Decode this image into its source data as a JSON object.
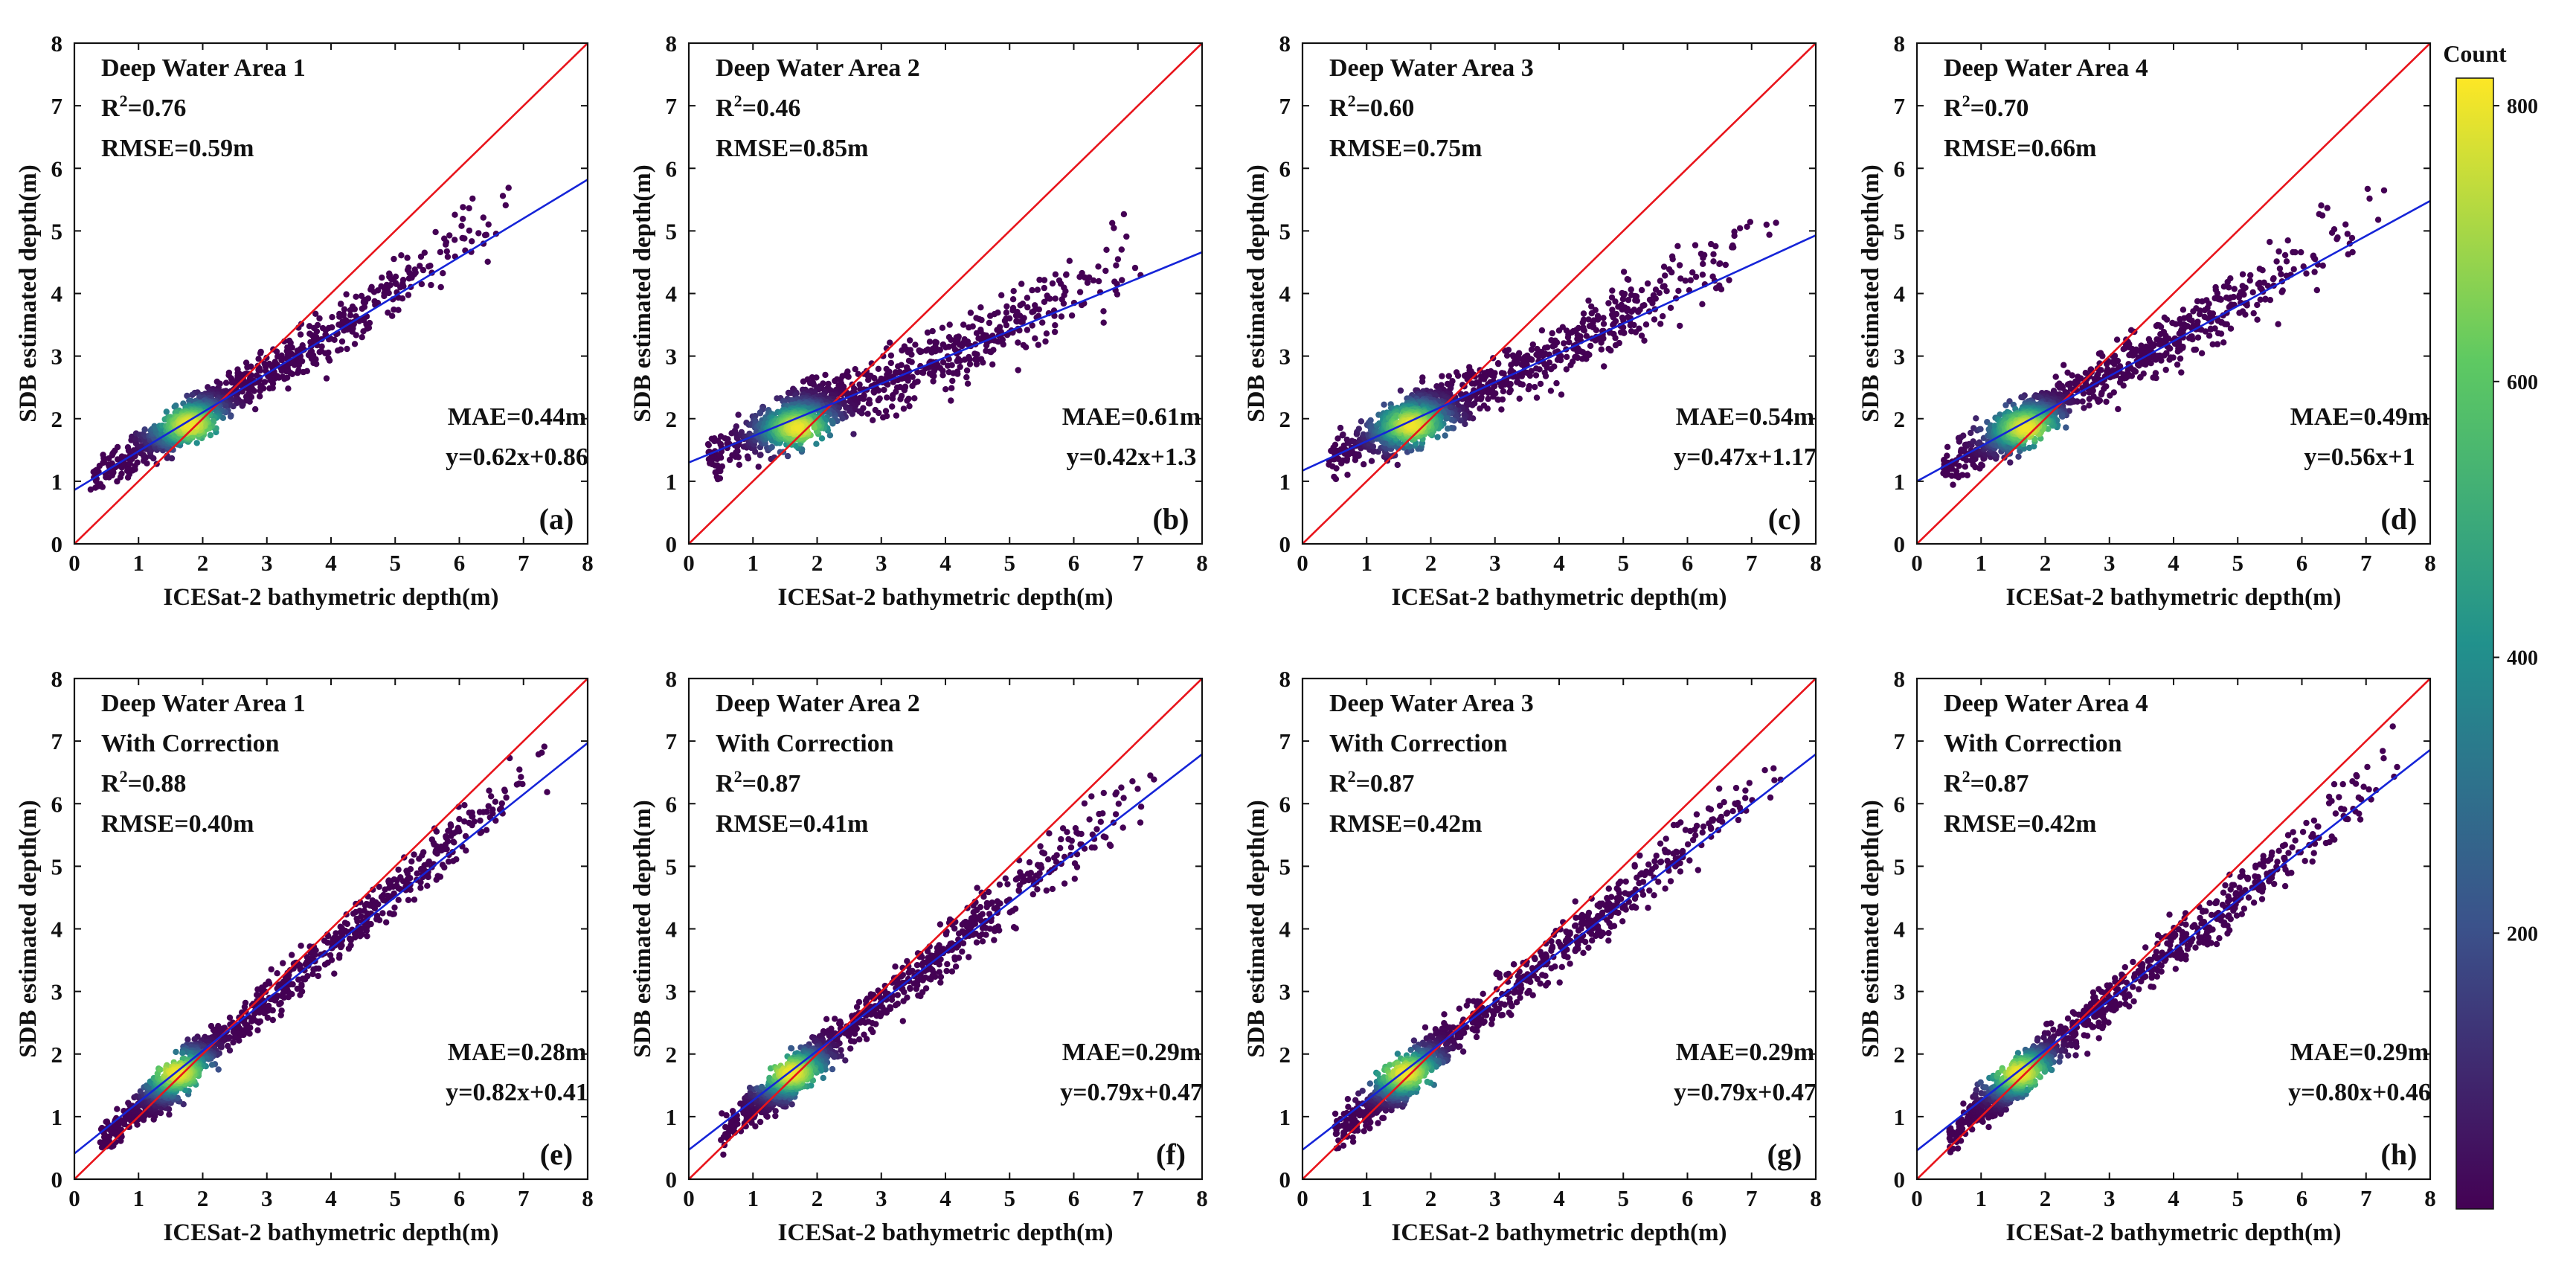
{
  "chart_data": [
    {
      "type": "scatter",
      "panel": "(a)",
      "title_lines": [
        "Deep Water Area 1"
      ],
      "r2": "0.76",
      "rmse": "RMSE=0.59m",
      "mae": "MAE=0.44m",
      "fit_equation": "y=0.62x+0.86",
      "fit": {
        "slope": 0.62,
        "intercept": 0.86
      },
      "xlabel": "ICESat-2 bathymetric depth(m)",
      "ylabel": "SDB estimated depth(m)",
      "xlim": [
        0,
        8
      ],
      "ylim": [
        0,
        8
      ],
      "cloud": {
        "lo": 0.25,
        "hi": 6.9,
        "sigma": 0.33,
        "dense_x": 1.8,
        "dense_y": 1.9
      }
    },
    {
      "type": "scatter",
      "panel": "(b)",
      "title_lines": [
        "Deep Water Area 2"
      ],
      "r2": "0.46",
      "rmse": "RMSE=0.85m",
      "mae": "MAE=0.61m",
      "fit_equation": "y=0.42x+1.3",
      "fit": {
        "slope": 0.42,
        "intercept": 1.3
      },
      "xlabel": "ICESat-2 bathymetric depth(m)",
      "ylabel": "SDB estimated depth(m)",
      "xlim": [
        0,
        8
      ],
      "ylim": [
        0,
        8
      ],
      "cloud": {
        "lo": 0.3,
        "hi": 7.4,
        "sigma": 0.42,
        "dense_x": 1.7,
        "dense_y": 1.85
      }
    },
    {
      "type": "scatter",
      "panel": "(c)",
      "title_lines": [
        "Deep Water Area 3"
      ],
      "r2": "0.60",
      "rmse": "RMSE=0.75m",
      "mae": "MAE=0.54m",
      "fit_equation": "y=0.47x+1.17",
      "fit": {
        "slope": 0.47,
        "intercept": 1.17
      },
      "xlabel": "ICESat-2 bathymetric depth(m)",
      "ylabel": "SDB estimated depth(m)",
      "xlim": [
        0,
        8
      ],
      "ylim": [
        0,
        8
      ],
      "cloud": {
        "lo": 0.4,
        "hi": 7.5,
        "sigma": 0.38,
        "dense_x": 1.7,
        "dense_y": 1.9
      }
    },
    {
      "type": "scatter",
      "panel": "(d)",
      "title_lines": [
        "Deep Water Area 4"
      ],
      "r2": "0.70",
      "rmse": "RMSE=0.66m",
      "mae": "MAE=0.49m",
      "fit_equation": "y=0.56x+1",
      "fit": {
        "slope": 0.56,
        "intercept": 1.0
      },
      "xlabel": "ICESat-2 bathymetric depth(m)",
      "ylabel": "SDB estimated depth(m)",
      "xlim": [
        0,
        8
      ],
      "ylim": [
        0,
        8
      ],
      "cloud": {
        "lo": 0.4,
        "hi": 7.4,
        "sigma": 0.35,
        "dense_x": 1.7,
        "dense_y": 1.85
      }
    },
    {
      "type": "scatter",
      "panel": "(e)",
      "title_lines": [
        "Deep Water Area 1",
        "With Correction"
      ],
      "r2": "0.88",
      "rmse": "RMSE=0.40m",
      "mae": "MAE=0.28m",
      "fit_equation": "y=0.82x+0.41",
      "fit": {
        "slope": 0.82,
        "intercept": 0.41
      },
      "xlabel": "ICESat-2 bathymetric depth(m)",
      "ylabel": "SDB estimated depth(m)",
      "xlim": [
        0,
        8
      ],
      "ylim": [
        0,
        8
      ],
      "cloud": {
        "lo": 0.4,
        "hi": 7.7,
        "sigma": 0.32,
        "dense_x": 1.6,
        "dense_y": 1.7
      }
    },
    {
      "type": "scatter",
      "panel": "(f)",
      "title_lines": [
        "Deep Water Area 2",
        "With Correction"
      ],
      "r2": "0.87",
      "rmse": "RMSE=0.41m",
      "mae": "MAE=0.29m",
      "fit_equation": "y=0.79x+0.47",
      "fit": {
        "slope": 0.79,
        "intercept": 0.47
      },
      "xlabel": "ICESat-2 bathymetric depth(m)",
      "ylabel": "SDB estimated depth(m)",
      "xlim": [
        0,
        8
      ],
      "ylim": [
        0,
        8
      ],
      "cloud": {
        "lo": 0.5,
        "hi": 7.5,
        "sigma": 0.32,
        "dense_x": 1.6,
        "dense_y": 1.7
      }
    },
    {
      "type": "scatter",
      "panel": "(g)",
      "title_lines": [
        "Deep Water Area 3",
        "With Correction"
      ],
      "r2": "0.87",
      "rmse": "RMSE=0.42m",
      "mae": "MAE=0.29m",
      "fit_equation": "y=0.79x+0.47",
      "fit": {
        "slope": 0.79,
        "intercept": 0.47
      },
      "xlabel": "ICESat-2 bathymetric depth(m)",
      "ylabel": "SDB estimated depth(m)",
      "xlim": [
        0,
        8
      ],
      "ylim": [
        0,
        8
      ],
      "cloud": {
        "lo": 0.5,
        "hi": 7.6,
        "sigma": 0.33,
        "dense_x": 1.6,
        "dense_y": 1.7
      }
    },
    {
      "type": "scatter",
      "panel": "(h)",
      "title_lines": [
        "Deep Water Area 4",
        "With Correction"
      ],
      "r2": "0.87",
      "rmse": "RMSE=0.42m",
      "mae": "MAE=0.29m",
      "fit_equation": "y=0.80x+0.46",
      "fit": {
        "slope": 0.8,
        "intercept": 0.46
      },
      "xlabel": "ICESat-2 bathymetric depth(m)",
      "ylabel": "SDB estimated depth(m)",
      "xlim": [
        0,
        8
      ],
      "ylim": [
        0,
        8
      ],
      "cloud": {
        "lo": 0.5,
        "hi": 7.8,
        "sigma": 0.32,
        "dense_x": 1.6,
        "dense_y": 1.7
      }
    }
  ],
  "ticks": [
    "0",
    "1",
    "2",
    "3",
    "4",
    "5",
    "6",
    "7",
    "8"
  ],
  "reference_line": {
    "label": "1:1 line",
    "color": "#e8141b"
  },
  "fit_line_color": "#1524d8",
  "colorbar": {
    "title": "Count",
    "ticks": [
      200,
      400,
      600,
      800
    ],
    "min": 0,
    "max": 820,
    "colors": [
      "#440154",
      "#3b528b",
      "#21918c",
      "#5ec962",
      "#fde725"
    ]
  }
}
